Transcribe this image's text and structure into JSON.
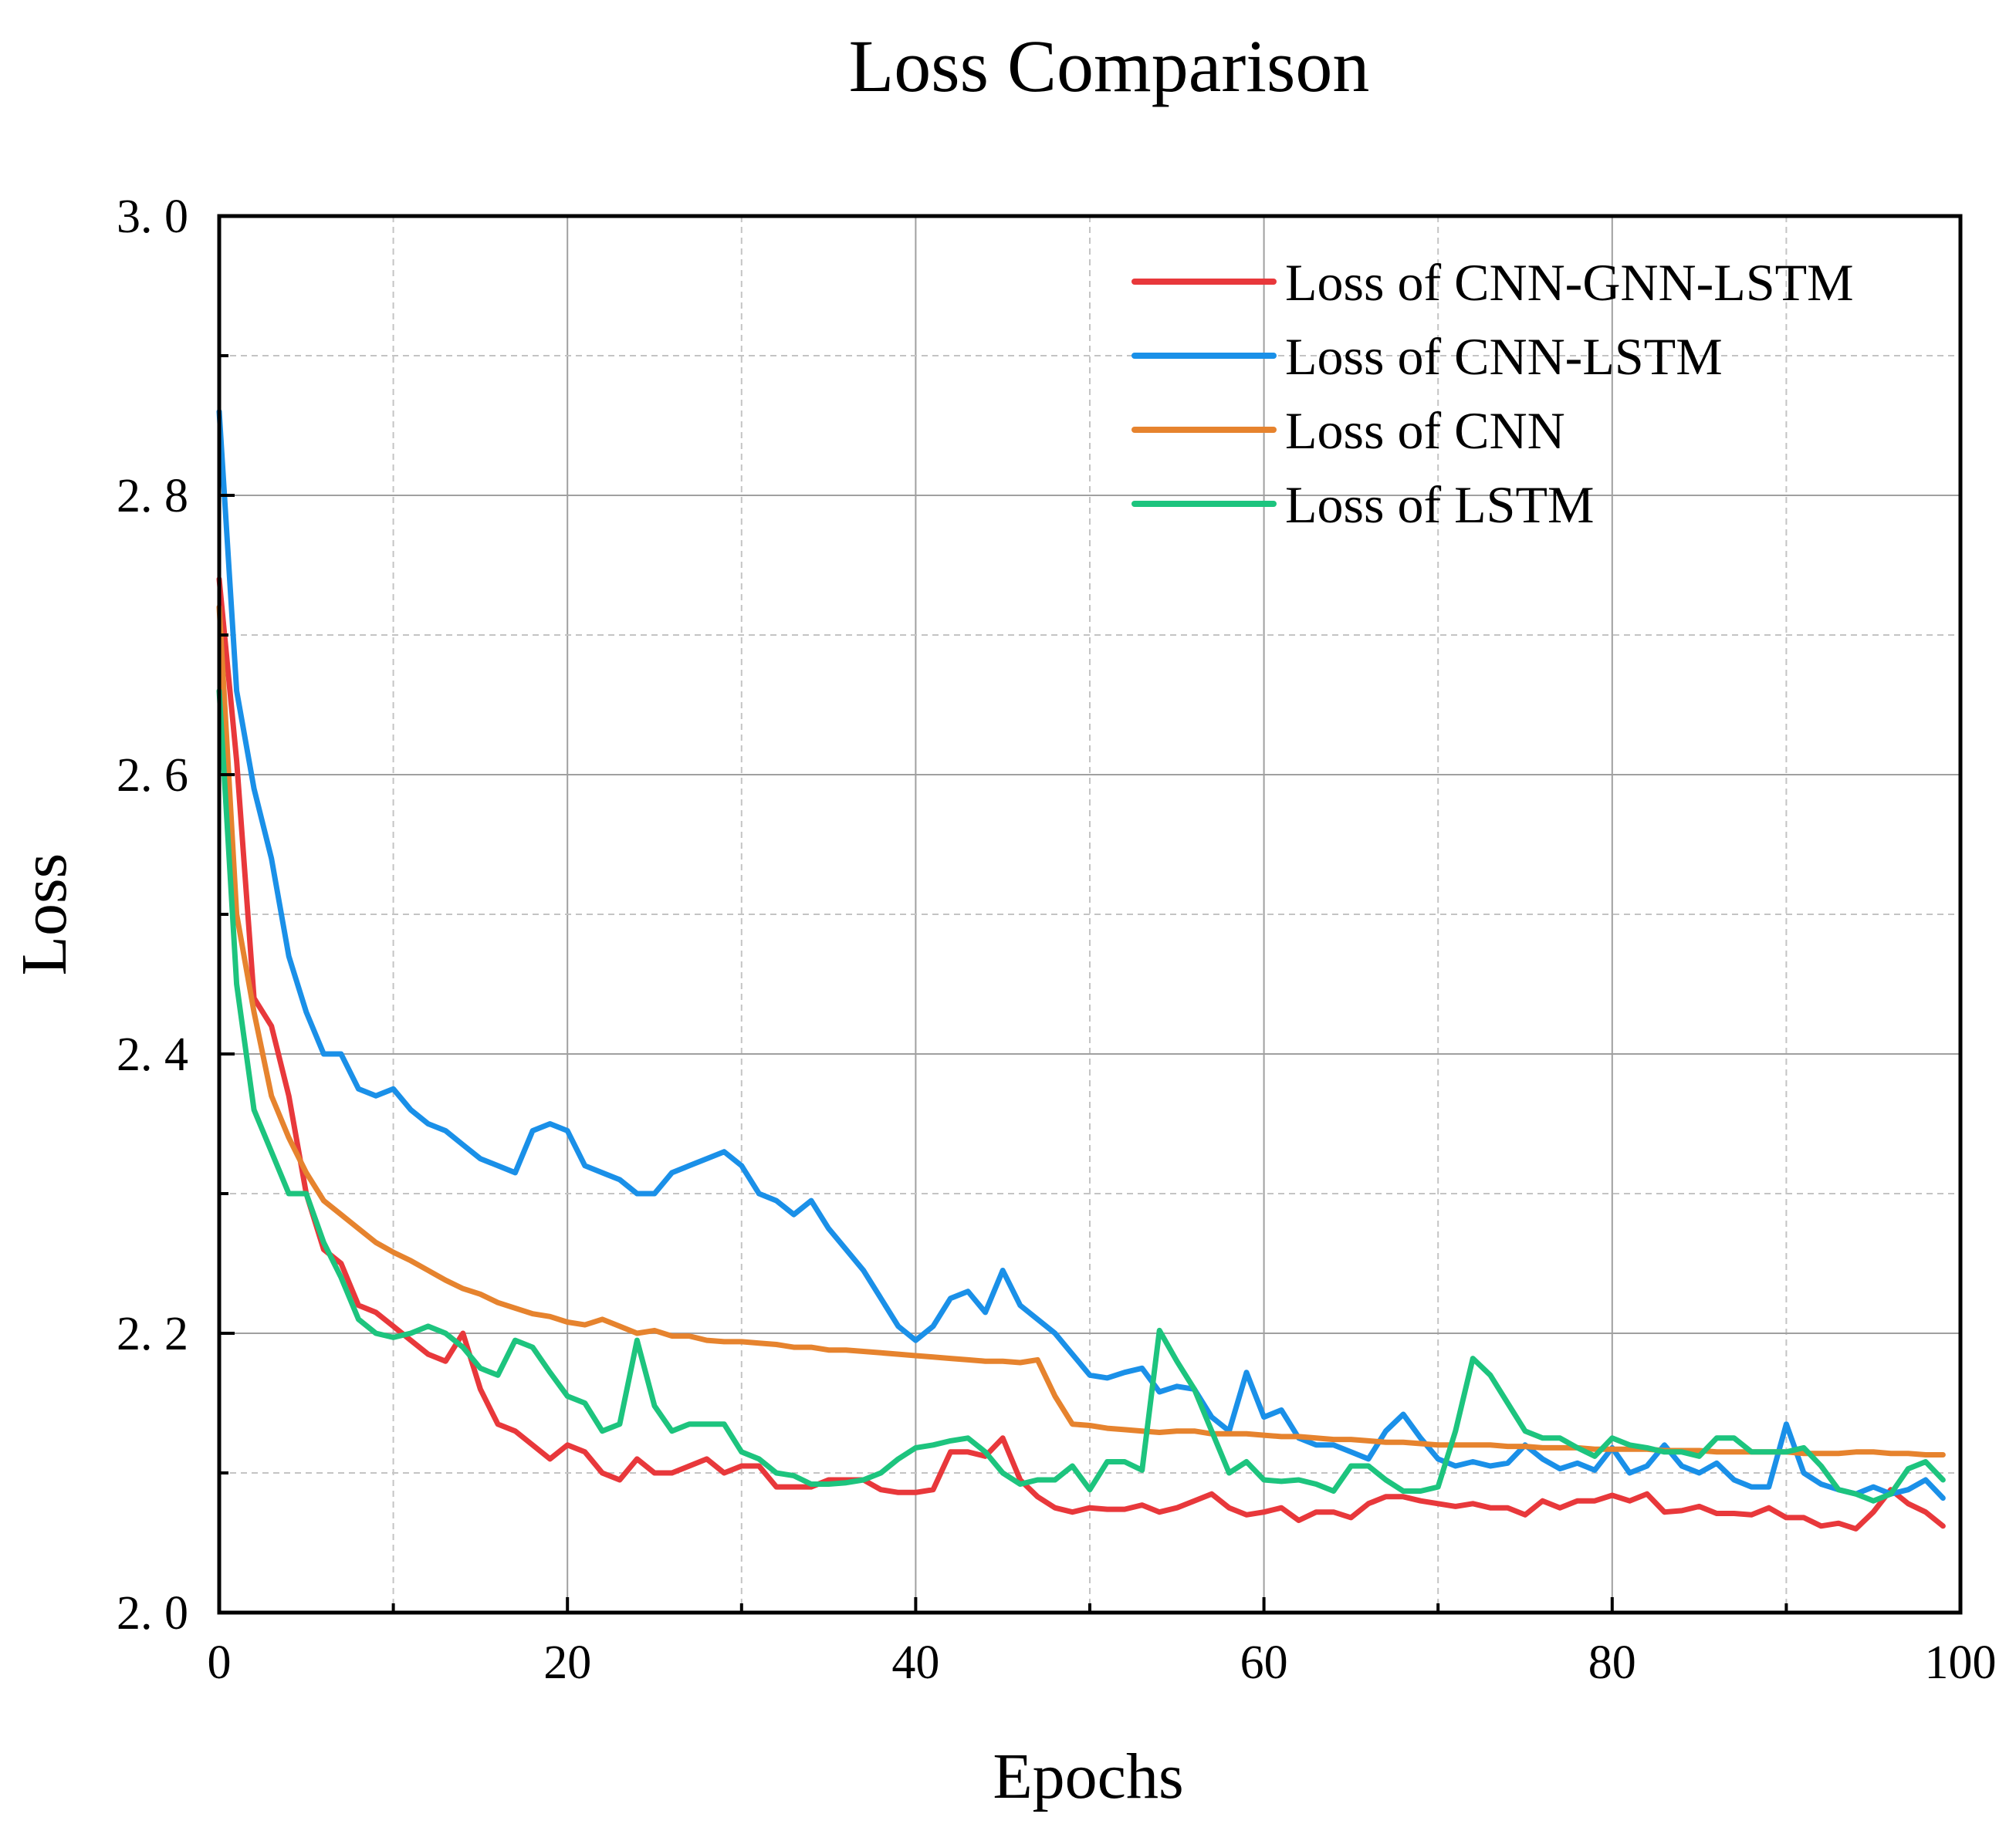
{
  "chart_data": {
    "type": "line",
    "title": "Loss Comparison",
    "xlabel": "Epochs",
    "ylabel": "Loss",
    "xlim": [
      0,
      100
    ],
    "ylim": [
      2.0,
      3.0
    ],
    "x_ticks": [
      0,
      20,
      40,
      60,
      80,
      100
    ],
    "x_tick_labels": [
      "0",
      "20",
      "40",
      "60",
      "80",
      "100"
    ],
    "y_ticks": [
      2.0,
      2.2,
      2.4,
      2.6,
      2.8,
      3.0
    ],
    "y_tick_labels": [
      "2. 0",
      "2. 2",
      "2. 4",
      "2. 6",
      "2. 8",
      "3. 0"
    ],
    "grid": true,
    "legend_position": "top-right",
    "series": [
      {
        "name": "Loss of CNN-GNN-LSTM",
        "color": "#e8383b",
        "x": [
          0,
          1,
          2,
          3,
          4,
          5,
          6,
          7,
          8,
          9,
          10,
          11,
          12,
          13,
          14,
          15,
          16,
          17,
          18,
          19,
          20,
          21,
          22,
          23,
          24,
          25,
          26,
          27,
          28,
          29,
          30,
          31,
          32,
          33,
          34,
          35,
          36,
          37,
          38,
          39,
          40,
          41,
          42,
          43,
          44,
          45,
          46,
          47,
          48,
          49,
          50,
          51,
          52,
          53,
          54,
          55,
          56,
          57,
          58,
          59,
          60,
          61,
          62,
          63,
          64,
          65,
          66,
          67,
          68,
          69,
          70,
          71,
          72,
          73,
          74,
          75,
          76,
          77,
          78,
          79,
          80,
          81,
          82,
          83,
          84,
          85,
          86,
          87,
          88,
          89,
          90,
          91,
          92,
          93,
          94,
          95,
          96,
          97,
          98,
          99
        ],
        "values": [
          2.74,
          2.61,
          2.44,
          2.42,
          2.37,
          2.3,
          2.26,
          2.25,
          2.22,
          2.215,
          2.205,
          2.195,
          2.185,
          2.18,
          2.2,
          2.16,
          2.135,
          2.13,
          2.12,
          2.11,
          2.12,
          2.115,
          2.1,
          2.095,
          2.11,
          2.1,
          2.1,
          2.105,
          2.11,
          2.1,
          2.105,
          2.105,
          2.09,
          2.09,
          2.09,
          2.095,
          2.095,
          2.095,
          2.088,
          2.086,
          2.086,
          2.088,
          2.115,
          2.115,
          2.112,
          2.125,
          2.095,
          2.083,
          2.075,
          2.072,
          2.075,
          2.074,
          2.074,
          2.077,
          2.072,
          2.075,
          2.08,
          2.085,
          2.075,
          2.07,
          2.072,
          2.075,
          2.066,
          2.072,
          2.072,
          2.068,
          2.078,
          2.083,
          2.083,
          2.08,
          2.078,
          2.076,
          2.078,
          2.075,
          2.075,
          2.07,
          2.08,
          2.075,
          2.08,
          2.08,
          2.084,
          2.08,
          2.085,
          2.072,
          2.073,
          2.076,
          2.071,
          2.071,
          2.07,
          2.075,
          2.068,
          2.068,
          2.062,
          2.064,
          2.06,
          2.072,
          2.088,
          2.078,
          2.072,
          2.062
        ]
      },
      {
        "name": "Loss of CNN-LSTM",
        "color": "#1a90e8",
        "x": [
          0,
          1,
          2,
          3,
          4,
          5,
          6,
          7,
          8,
          9,
          10,
          11,
          12,
          13,
          14,
          15,
          16,
          17,
          18,
          19,
          20,
          21,
          22,
          23,
          24,
          25,
          26,
          27,
          28,
          29,
          30,
          31,
          32,
          33,
          34,
          35,
          36,
          37,
          38,
          39,
          40,
          41,
          42,
          43,
          44,
          45,
          46,
          47,
          48,
          49,
          50,
          51,
          52,
          53,
          54,
          55,
          56,
          57,
          58,
          59,
          60,
          61,
          62,
          63,
          64,
          65,
          66,
          67,
          68,
          69,
          70,
          71,
          72,
          73,
          74,
          75,
          76,
          77,
          78,
          79,
          80,
          81,
          82,
          83,
          84,
          85,
          86,
          87,
          88,
          89,
          90,
          91,
          92,
          93,
          94,
          95,
          96,
          97,
          98,
          99
        ],
        "values": [
          2.86,
          2.66,
          2.59,
          2.54,
          2.47,
          2.43,
          2.4,
          2.4,
          2.375,
          2.37,
          2.375,
          2.36,
          2.35,
          2.345,
          2.335,
          2.325,
          2.32,
          2.315,
          2.345,
          2.35,
          2.345,
          2.32,
          2.315,
          2.31,
          2.3,
          2.3,
          2.315,
          2.32,
          2.325,
          2.33,
          2.32,
          2.3,
          2.295,
          2.285,
          2.295,
          2.275,
          2.26,
          2.245,
          2.225,
          2.205,
          2.195,
          2.205,
          2.225,
          2.23,
          2.215,
          2.245,
          2.22,
          2.21,
          2.2,
          2.185,
          2.17,
          2.168,
          2.172,
          2.175,
          2.158,
          2.162,
          2.16,
          2.14,
          2.13,
          2.172,
          2.14,
          2.145,
          2.125,
          2.12,
          2.12,
          2.115,
          2.11,
          2.13,
          2.142,
          2.125,
          2.11,
          2.105,
          2.108,
          2.105,
          2.107,
          2.12,
          2.11,
          2.103,
          2.107,
          2.102,
          2.118,
          2.1,
          2.105,
          2.12,
          2.105,
          2.1,
          2.107,
          2.095,
          2.09,
          2.09,
          2.135,
          2.1,
          2.092,
          2.088,
          2.085,
          2.09,
          2.085,
          2.088,
          2.095,
          2.082
        ]
      },
      {
        "name": "Loss of CNN",
        "color": "#e6832e",
        "x": [
          0,
          1,
          2,
          3,
          4,
          5,
          6,
          7,
          8,
          9,
          10,
          11,
          12,
          13,
          14,
          15,
          16,
          17,
          18,
          19,
          20,
          21,
          22,
          23,
          24,
          25,
          26,
          27,
          28,
          29,
          30,
          31,
          32,
          33,
          34,
          35,
          36,
          37,
          38,
          39,
          40,
          41,
          42,
          43,
          44,
          45,
          46,
          47,
          48,
          49,
          50,
          51,
          52,
          53,
          54,
          55,
          56,
          57,
          58,
          59,
          60,
          61,
          62,
          63,
          64,
          65,
          66,
          67,
          68,
          69,
          70,
          71,
          72,
          73,
          74,
          75,
          76,
          77,
          78,
          79,
          80,
          81,
          82,
          83,
          84,
          85,
          86,
          87,
          88,
          89,
          90,
          91,
          92,
          93,
          94,
          95,
          96,
          97,
          98,
          99
        ],
        "values": [
          2.72,
          2.5,
          2.43,
          2.37,
          2.34,
          2.315,
          2.295,
          2.285,
          2.275,
          2.265,
          2.258,
          2.252,
          2.245,
          2.238,
          2.232,
          2.228,
          2.222,
          2.218,
          2.214,
          2.212,
          2.208,
          2.206,
          2.21,
          2.205,
          2.2,
          2.202,
          2.198,
          2.198,
          2.195,
          2.194,
          2.194,
          2.193,
          2.192,
          2.19,
          2.19,
          2.188,
          2.188,
          2.187,
          2.186,
          2.185,
          2.184,
          2.183,
          2.182,
          2.181,
          2.18,
          2.18,
          2.179,
          2.181,
          2.155,
          2.135,
          2.134,
          2.132,
          2.131,
          2.13,
          2.129,
          2.13,
          2.13,
          2.128,
          2.128,
          2.128,
          2.127,
          2.126,
          2.126,
          2.125,
          2.124,
          2.124,
          2.123,
          2.122,
          2.122,
          2.121,
          2.12,
          2.12,
          2.12,
          2.12,
          2.119,
          2.119,
          2.118,
          2.118,
          2.118,
          2.117,
          2.117,
          2.117,
          2.117,
          2.116,
          2.116,
          2.116,
          2.115,
          2.115,
          2.115,
          2.115,
          2.115,
          2.114,
          2.114,
          2.114,
          2.115,
          2.115,
          2.114,
          2.114,
          2.113,
          2.113
        ]
      },
      {
        "name": "Loss of LSTM",
        "color": "#1dc47e",
        "x": [
          0,
          1,
          2,
          3,
          4,
          5,
          6,
          7,
          8,
          9,
          10,
          11,
          12,
          13,
          14,
          15,
          16,
          17,
          18,
          19,
          20,
          21,
          22,
          23,
          24,
          25,
          26,
          27,
          28,
          29,
          30,
          31,
          32,
          33,
          34,
          35,
          36,
          37,
          38,
          39,
          40,
          41,
          42,
          43,
          44,
          45,
          46,
          47,
          48,
          49,
          50,
          51,
          52,
          53,
          54,
          55,
          56,
          57,
          58,
          59,
          60,
          61,
          62,
          63,
          64,
          65,
          66,
          67,
          68,
          69,
          70,
          71,
          72,
          73,
          74,
          75,
          76,
          77,
          78,
          79,
          80,
          81,
          82,
          83,
          84,
          85,
          86,
          87,
          88,
          89,
          90,
          91,
          92,
          93,
          94,
          95,
          96,
          97,
          98,
          99
        ],
        "values": [
          2.66,
          2.45,
          2.36,
          2.33,
          2.3,
          2.3,
          2.265,
          2.24,
          2.21,
          2.2,
          2.197,
          2.2,
          2.205,
          2.2,
          2.19,
          2.175,
          2.17,
          2.195,
          2.19,
          2.172,
          2.155,
          2.15,
          2.13,
          2.135,
          2.195,
          2.148,
          2.13,
          2.135,
          2.135,
          2.135,
          2.115,
          2.11,
          2.1,
          2.098,
          2.092,
          2.092,
          2.093,
          2.095,
          2.1,
          2.11,
          2.118,
          2.12,
          2.123,
          2.125,
          2.115,
          2.1,
          2.092,
          2.095,
          2.095,
          2.105,
          2.088,
          2.108,
          2.108,
          2.102,
          2.202,
          2.18,
          2.16,
          2.13,
          2.1,
          2.108,
          2.095,
          2.094,
          2.095,
          2.092,
          2.087,
          2.105,
          2.105,
          2.095,
          2.087,
          2.087,
          2.09,
          2.13,
          2.182,
          2.17,
          2.15,
          2.13,
          2.125,
          2.125,
          2.118,
          2.112,
          2.125,
          2.12,
          2.118,
          2.115,
          2.115,
          2.112,
          2.125,
          2.125,
          2.115,
          2.115,
          2.115,
          2.118,
          2.105,
          2.088,
          2.085,
          2.08,
          2.085,
          2.103,
          2.108,
          2.095
        ]
      }
    ]
  }
}
